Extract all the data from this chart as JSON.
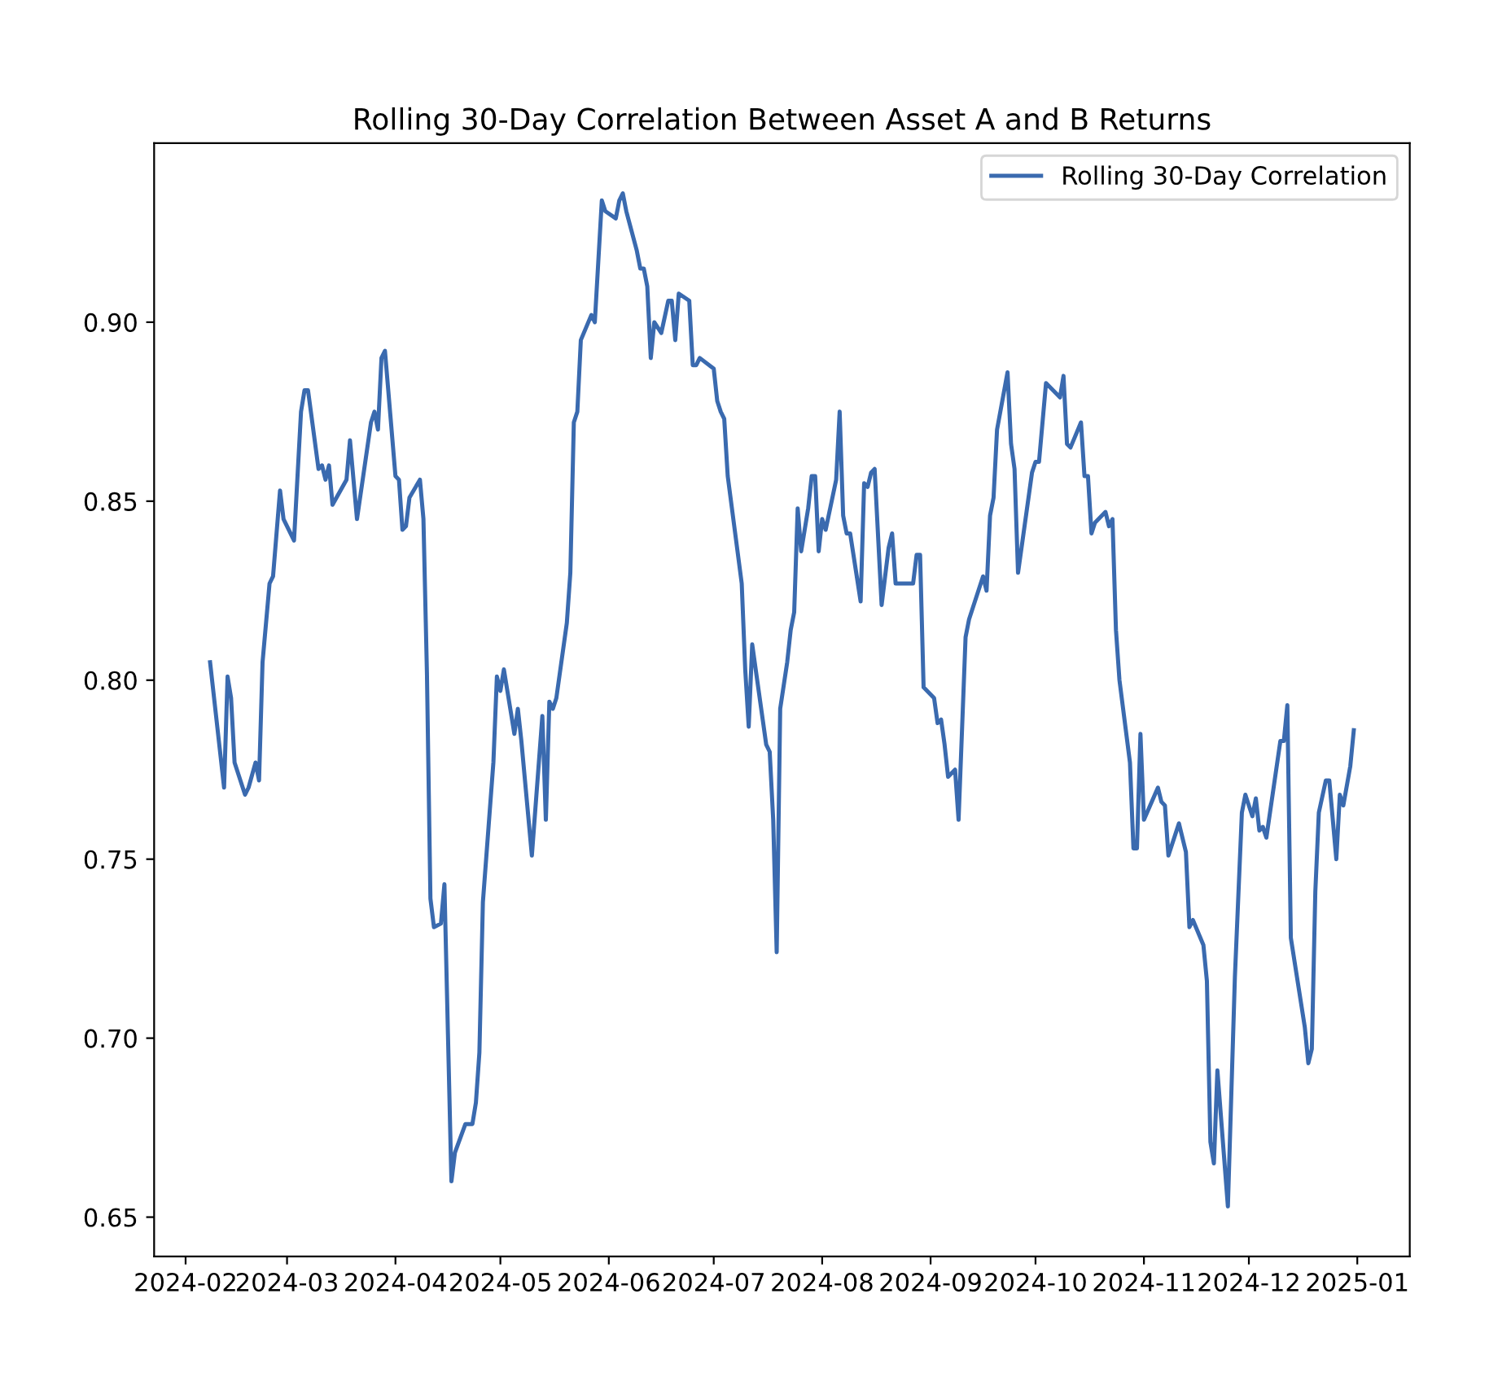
{
  "chart_data": {
    "type": "line",
    "title": "Rolling 30-Day Correlation Between Asset A and B Returns",
    "x": [
      "2024-02-08",
      "2024-02-12",
      "2024-02-13",
      "2024-02-14",
      "2024-02-15",
      "2024-02-18",
      "2024-02-19",
      "2024-02-21",
      "2024-02-22",
      "2024-02-23",
      "2024-02-25",
      "2024-02-26",
      "2024-02-28",
      "2024-02-29",
      "2024-03-03",
      "2024-03-05",
      "2024-03-06",
      "2024-03-07",
      "2024-03-10",
      "2024-03-11",
      "2024-03-12",
      "2024-03-13",
      "2024-03-14",
      "2024-03-18",
      "2024-03-19",
      "2024-03-21",
      "2024-03-25",
      "2024-03-26",
      "2024-03-27",
      "2024-03-28",
      "2024-03-29",
      "2024-04-01",
      "2024-04-02",
      "2024-04-03",
      "2024-04-04",
      "2024-04-05",
      "2024-04-08",
      "2024-04-09",
      "2024-04-10",
      "2024-04-11",
      "2024-04-12",
      "2024-04-14",
      "2024-04-15",
      "2024-04-17",
      "2024-04-18",
      "2024-04-21",
      "2024-04-23",
      "2024-04-24",
      "2024-04-25",
      "2024-04-26",
      "2024-04-29",
      "2024-04-30",
      "2024-05-01",
      "2024-05-02",
      "2024-05-04",
      "2024-05-05",
      "2024-05-06",
      "2024-05-07",
      "2024-05-10",
      "2024-05-13",
      "2024-05-14",
      "2024-05-15",
      "2024-05-16",
      "2024-05-17",
      "2024-05-20",
      "2024-05-21",
      "2024-05-22",
      "2024-05-23",
      "2024-05-24",
      "2024-05-27",
      "2024-05-28",
      "2024-05-30",
      "2024-05-31",
      "2024-06-03",
      "2024-06-04",
      "2024-06-05",
      "2024-06-06",
      "2024-06-09",
      "2024-06-10",
      "2024-06-11",
      "2024-06-12",
      "2024-06-13",
      "2024-06-14",
      "2024-06-16",
      "2024-06-18",
      "2024-06-19",
      "2024-06-20",
      "2024-06-21",
      "2024-06-24",
      "2024-06-25",
      "2024-06-26",
      "2024-06-27",
      "2024-07-01",
      "2024-07-02",
      "2024-07-03",
      "2024-07-04",
      "2024-07-05",
      "2024-07-07",
      "2024-07-09",
      "2024-07-10",
      "2024-07-11",
      "2024-07-12",
      "2024-07-15",
      "2024-07-16",
      "2024-07-17",
      "2024-07-18",
      "2024-07-19",
      "2024-07-20",
      "2024-07-22",
      "2024-07-23",
      "2024-07-24",
      "2024-07-25",
      "2024-07-26",
      "2024-07-28",
      "2024-07-29",
      "2024-07-30",
      "2024-07-31",
      "2024-08-01",
      "2024-08-02",
      "2024-08-05",
      "2024-08-06",
      "2024-08-07",
      "2024-08-08",
      "2024-08-09",
      "2024-08-12",
      "2024-08-13",
      "2024-08-14",
      "2024-08-15",
      "2024-08-16",
      "2024-08-18",
      "2024-08-20",
      "2024-08-21",
      "2024-08-22",
      "2024-08-27",
      "2024-08-28",
      "2024-08-29",
      "2024-08-30",
      "2024-09-02",
      "2024-09-03",
      "2024-09-04",
      "2024-09-05",
      "2024-09-06",
      "2024-09-08",
      "2024-09-09",
      "2024-09-11",
      "2024-09-12",
      "2024-09-16",
      "2024-09-17",
      "2024-09-18",
      "2024-09-19",
      "2024-09-20",
      "2024-09-23",
      "2024-09-24",
      "2024-09-25",
      "2024-09-26",
      "2024-09-30",
      "2024-10-01",
      "2024-10-02",
      "2024-10-04",
      "2024-10-08",
      "2024-10-09",
      "2024-10-10",
      "2024-10-11",
      "2024-10-14",
      "2024-10-15",
      "2024-10-16",
      "2024-10-17",
      "2024-10-18",
      "2024-10-21",
      "2024-10-22",
      "2024-10-23",
      "2024-10-24",
      "2024-10-25",
      "2024-10-28",
      "2024-10-29",
      "2024-10-30",
      "2024-10-31",
      "2024-11-01",
      "2024-11-05",
      "2024-11-06",
      "2024-11-07",
      "2024-11-08",
      "2024-11-11",
      "2024-11-13",
      "2024-11-14",
      "2024-11-15",
      "2024-11-18",
      "2024-11-19",
      "2024-11-20",
      "2024-11-21",
      "2024-11-22",
      "2024-11-25",
      "2024-11-27",
      "2024-11-29",
      "2024-11-30",
      "2024-12-02",
      "2024-12-03",
      "2024-12-04",
      "2024-12-05",
      "2024-12-06",
      "2024-12-10",
      "2024-12-11",
      "2024-12-12",
      "2024-12-13",
      "2024-12-17",
      "2024-12-18",
      "2024-12-19",
      "2024-12-20",
      "2024-12-21",
      "2024-12-23",
      "2024-12-24",
      "2024-12-26",
      "2024-12-27",
      "2024-12-28",
      "2024-12-30",
      "2024-12-31"
    ],
    "series": [
      {
        "name": "Rolling 30-Day Correlation",
        "color": "#3a6aaf",
        "values": [
          0.805,
          0.77,
          0.801,
          0.795,
          0.777,
          0.768,
          0.77,
          0.777,
          0.772,
          0.805,
          0.827,
          0.829,
          0.853,
          0.845,
          0.839,
          0.875,
          0.881,
          0.881,
          0.859,
          0.86,
          0.856,
          0.86,
          0.849,
          0.856,
          0.867,
          0.845,
          0.872,
          0.875,
          0.87,
          0.89,
          0.892,
          0.857,
          0.856,
          0.842,
          0.843,
          0.851,
          0.856,
          0.845,
          0.802,
          0.739,
          0.731,
          0.732,
          0.743,
          0.66,
          0.668,
          0.676,
          0.676,
          0.682,
          0.696,
          0.738,
          0.777,
          0.801,
          0.797,
          0.803,
          0.791,
          0.785,
          0.792,
          0.783,
          0.751,
          0.79,
          0.761,
          0.794,
          0.792,
          0.795,
          0.816,
          0.83,
          0.872,
          0.875,
          0.895,
          0.902,
          0.9,
          0.934,
          0.931,
          0.929,
          0.934,
          0.936,
          0.931,
          0.92,
          0.915,
          0.915,
          0.91,
          0.89,
          0.9,
          0.897,
          0.906,
          0.906,
          0.895,
          0.908,
          0.906,
          0.888,
          0.888,
          0.89,
          0.887,
          0.878,
          0.875,
          0.873,
          0.857,
          0.842,
          0.827,
          0.803,
          0.787,
          0.81,
          0.789,
          0.782,
          0.78,
          0.761,
          0.724,
          0.792,
          0.805,
          0.814,
          0.819,
          0.848,
          0.836,
          0.848,
          0.857,
          0.857,
          0.836,
          0.845,
          0.842,
          0.856,
          0.875,
          0.846,
          0.841,
          0.841,
          0.822,
          0.855,
          0.854,
          0.858,
          0.859,
          0.821,
          0.837,
          0.841,
          0.827,
          0.827,
          0.835,
          0.835,
          0.798,
          0.795,
          0.788,
          0.789,
          0.782,
          0.773,
          0.775,
          0.761,
          0.812,
          0.817,
          0.829,
          0.825,
          0.846,
          0.851,
          0.87,
          0.886,
          0.866,
          0.859,
          0.83,
          0.858,
          0.861,
          0.861,
          0.883,
          0.879,
          0.885,
          0.866,
          0.865,
          0.872,
          0.857,
          0.857,
          0.841,
          0.844,
          0.847,
          0.843,
          0.845,
          0.814,
          0.8,
          0.777,
          0.753,
          0.753,
          0.785,
          0.761,
          0.77,
          0.766,
          0.765,
          0.751,
          0.76,
          0.752,
          0.731,
          0.733,
          0.726,
          0.716,
          0.671,
          0.665,
          0.691,
          0.653,
          0.717,
          0.763,
          0.768,
          0.762,
          0.767,
          0.758,
          0.759,
          0.756,
          0.783,
          0.783,
          0.793,
          0.728,
          0.703,
          0.693,
          0.697,
          0.741,
          0.763,
          0.772,
          0.772,
          0.75,
          0.768,
          0.765,
          0.776,
          0.786
        ]
      }
    ],
    "xlim": [
      "2024-01-23",
      "2025-01-16"
    ],
    "xticks": [
      {
        "value": "2024-02-01",
        "label": "2024-02"
      },
      {
        "value": "2024-03-01",
        "label": "2024-03"
      },
      {
        "value": "2024-04-01",
        "label": "2024-04"
      },
      {
        "value": "2024-05-01",
        "label": "2024-05"
      },
      {
        "value": "2024-06-01",
        "label": "2024-06"
      },
      {
        "value": "2024-07-01",
        "label": "2024-07"
      },
      {
        "value": "2024-08-01",
        "label": "2024-08"
      },
      {
        "value": "2024-09-01",
        "label": "2024-09"
      },
      {
        "value": "2024-10-01",
        "label": "2024-10"
      },
      {
        "value": "2024-11-01",
        "label": "2024-11"
      },
      {
        "value": "2024-12-01",
        "label": "2024-12"
      },
      {
        "value": "2025-01-01",
        "label": "2025-01"
      }
    ],
    "ylim": [
      0.639,
      0.95
    ],
    "yticks": [
      {
        "value": 0.65,
        "label": "0.65"
      },
      {
        "value": 0.7,
        "label": "0.70"
      },
      {
        "value": 0.75,
        "label": "0.75"
      },
      {
        "value": 0.8,
        "label": "0.80"
      },
      {
        "value": 0.85,
        "label": "0.85"
      },
      {
        "value": 0.9,
        "label": "0.90"
      }
    ],
    "legend": "top right",
    "grid": false,
    "marker": "none",
    "line_style": "solid"
  }
}
